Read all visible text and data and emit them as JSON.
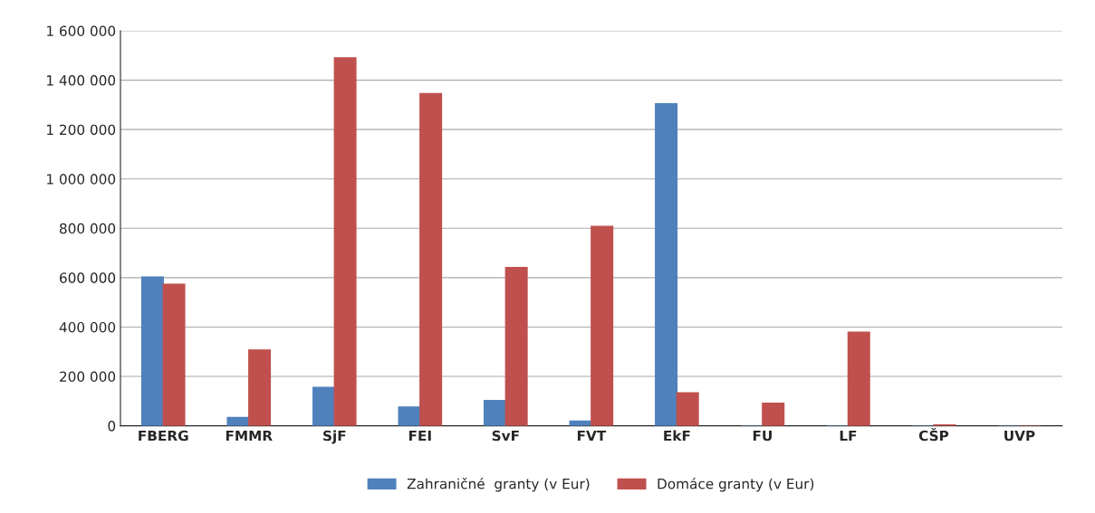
{
  "chart_data": {
    "type": "bar",
    "categories": [
      "FBERG",
      "FMMR",
      "SjF",
      "FEI",
      "SvF",
      "FVT",
      "EkF",
      "FU",
      "LF",
      "CŠP",
      "UVP"
    ],
    "series": [
      {
        "name": "Zahraničné  granty (v Eur)",
        "color": "#4f81bd",
        "values": [
          603000,
          34000,
          155000,
          76000,
          102000,
          19000,
          1304000,
          0,
          0,
          0,
          0
        ]
      },
      {
        "name": "Domáce granty (v Eur)",
        "color": "#c0504d",
        "values": [
          573000,
          307000,
          1490000,
          1346000,
          641000,
          808000,
          133000,
          91000,
          379000,
          3000,
          0
        ]
      }
    ],
    "ylim": [
      0,
      1600000
    ],
    "yticks": [
      {
        "value": 0,
        "label": "0"
      },
      {
        "value": 200000,
        "label": "200 000"
      },
      {
        "value": 400000,
        "label": "400 000"
      },
      {
        "value": 600000,
        "label": "600 000"
      },
      {
        "value": 800000,
        "label": "800 000"
      },
      {
        "value": 1000000,
        "label": "1 000 000"
      },
      {
        "value": 1200000,
        "label": "1 200 000"
      },
      {
        "value": 1400000,
        "label": "1 400 000"
      },
      {
        "value": 1600000,
        "label": "1 600 000"
      }
    ],
    "grid": "y",
    "legend": "bottom"
  }
}
